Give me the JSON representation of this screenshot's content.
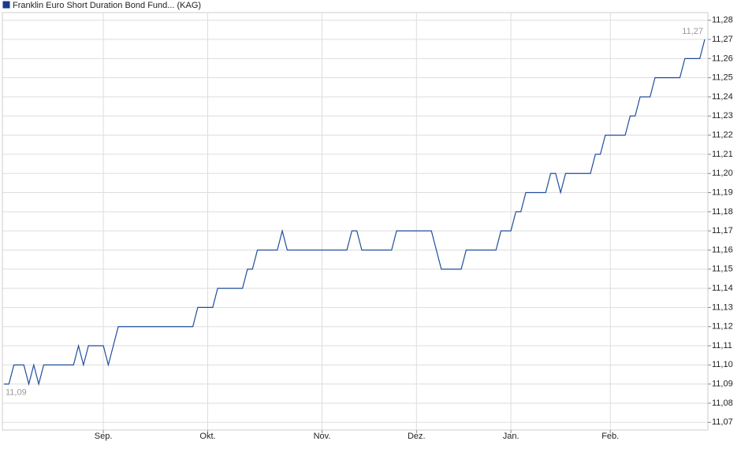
{
  "chart_data": {
    "type": "line",
    "categories": [
      null,
      null,
      null,
      null,
      null,
      null,
      null,
      null,
      null,
      null,
      null,
      null,
      null,
      null,
      null,
      null,
      null,
      null,
      null,
      null,
      "Sep.",
      null,
      null,
      null,
      null,
      null,
      null,
      null,
      null,
      null,
      null,
      null,
      null,
      null,
      null,
      null,
      null,
      null,
      null,
      null,
      null,
      "Okt.",
      null,
      null,
      null,
      null,
      null,
      null,
      null,
      null,
      null,
      null,
      null,
      null,
      null,
      null,
      null,
      null,
      null,
      null,
      null,
      null,
      null,
      null,
      "Nov.",
      null,
      null,
      null,
      null,
      null,
      null,
      null,
      null,
      null,
      null,
      null,
      null,
      null,
      null,
      null,
      null,
      null,
      null,
      "Dez.",
      null,
      null,
      null,
      null,
      null,
      null,
      null,
      null,
      null,
      null,
      null,
      null,
      null,
      null,
      null,
      null,
      null,
      null,
      "Jan.",
      null,
      null,
      null,
      null,
      null,
      null,
      null,
      null,
      null,
      null,
      null,
      null,
      null,
      null,
      null,
      null,
      null,
      null,
      null,
      "Feb.",
      null,
      null,
      null,
      null,
      null,
      null,
      null,
      null,
      null,
      null,
      null,
      null,
      null,
      null,
      null,
      null,
      null,
      null,
      null
    ],
    "series": [
      {
        "name": "Franklin Euro Short Duration Bond Fund... (KAG)",
        "color": "#1f4e9c",
        "legend_color": "#1a3a8a",
        "values": [
          11.09,
          11.09,
          11.1,
          11.1,
          11.1,
          11.09,
          11.1,
          11.09,
          11.1,
          11.1,
          11.1,
          11.1,
          11.1,
          11.1,
          11.1,
          11.11,
          11.1,
          11.11,
          11.11,
          11.11,
          11.11,
          11.1,
          11.11,
          11.12,
          11.12,
          11.12,
          11.12,
          11.12,
          11.12,
          11.12,
          11.12,
          11.12,
          11.12,
          11.12,
          11.12,
          11.12,
          11.12,
          11.12,
          11.12,
          11.13,
          11.13,
          11.13,
          11.13,
          11.14,
          11.14,
          11.14,
          11.14,
          11.14,
          11.14,
          11.15,
          11.15,
          11.16,
          11.16,
          11.16,
          11.16,
          11.16,
          11.17,
          11.16,
          11.16,
          11.16,
          11.16,
          11.16,
          11.16,
          11.16,
          11.16,
          11.16,
          11.16,
          11.16,
          11.16,
          11.16,
          11.17,
          11.17,
          11.16,
          11.16,
          11.16,
          11.16,
          11.16,
          11.16,
          11.16,
          11.17,
          11.17,
          11.17,
          11.17,
          11.17,
          11.17,
          11.17,
          11.17,
          11.16,
          11.15,
          11.15,
          11.15,
          11.15,
          11.15,
          11.16,
          11.16,
          11.16,
          11.16,
          11.16,
          11.16,
          11.16,
          11.17,
          11.17,
          11.17,
          11.18,
          11.18,
          11.19,
          11.19,
          11.19,
          11.19,
          11.19,
          11.2,
          11.2,
          11.19,
          11.2,
          11.2,
          11.2,
          11.2,
          11.2,
          11.2,
          11.21,
          11.21,
          11.22,
          11.22,
          11.22,
          11.22,
          11.22,
          11.23,
          11.23,
          11.24,
          11.24,
          11.24,
          11.25,
          11.25,
          11.25,
          11.25,
          11.25,
          11.25,
          11.26,
          11.26,
          11.26,
          11.26,
          11.27
        ]
      }
    ],
    "annotations": [
      {
        "label": "11,09",
        "value": 11.09
      },
      {
        "label": "11,27",
        "value": 11.27
      }
    ],
    "ylim": [
      11.066,
      11.284
    ],
    "yticks": [
      {
        "value": 11.07,
        "label": "11,07"
      },
      {
        "value": 11.08,
        "label": "11,08"
      },
      {
        "value": 11.09,
        "label": "11,09"
      },
      {
        "value": 11.1,
        "label": "11,10"
      },
      {
        "value": 11.11,
        "label": "11,11"
      },
      {
        "value": 11.12,
        "label": "11,12"
      },
      {
        "value": 11.13,
        "label": "11,13"
      },
      {
        "value": 11.14,
        "label": "11,14"
      },
      {
        "value": 11.15,
        "label": "11,15"
      },
      {
        "value": 11.16,
        "label": "11,16"
      },
      {
        "value": 11.17,
        "label": "11,17"
      },
      {
        "value": 11.18,
        "label": "11,18"
      },
      {
        "value": 11.19,
        "label": "11,19"
      },
      {
        "value": 11.2,
        "label": "11,20"
      },
      {
        "value": 11.21,
        "label": "11,21"
      },
      {
        "value": 11.22,
        "label": "11,22"
      },
      {
        "value": 11.23,
        "label": "11,23"
      },
      {
        "value": 11.24,
        "label": "11,24"
      },
      {
        "value": 11.25,
        "label": "11,25"
      },
      {
        "value": 11.26,
        "label": "11,26"
      },
      {
        "value": 11.27,
        "label": "11,27"
      },
      {
        "value": 11.28,
        "label": "11,28"
      }
    ],
    "grid": true
  }
}
